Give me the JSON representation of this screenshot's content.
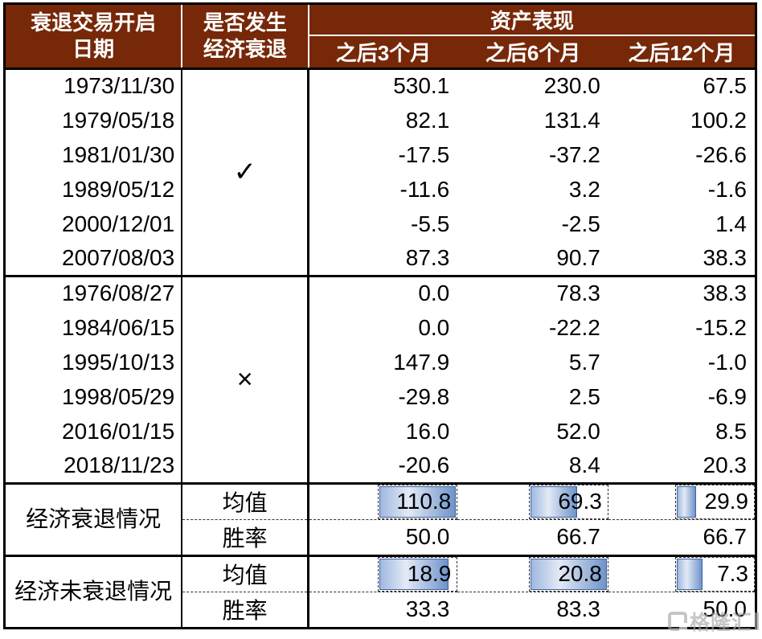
{
  "header": {
    "col1_line1": "衰退交易开启",
    "col1_line2": "日期",
    "col2_line1": "是否发生",
    "col2_line2": "经济衰退",
    "asset_title": "资产表现",
    "sub_3m": "之后3个月",
    "sub_6m": "之后6个月",
    "sub_12m": "之后12个月"
  },
  "groups": [
    {
      "flag": "✓",
      "rows": [
        [
          "1973/11/30",
          "530.1",
          "230.0",
          "67.5"
        ],
        [
          "1979/05/18",
          "82.1",
          "131.4",
          "100.2"
        ],
        [
          "1981/01/30",
          "-17.5",
          "-37.2",
          "-26.6"
        ],
        [
          "1989/05/12",
          "-11.6",
          "3.2",
          "-1.6"
        ],
        [
          "2000/12/01",
          "-5.5",
          "-2.5",
          "1.4"
        ],
        [
          "2007/08/03",
          "87.3",
          "90.7",
          "38.3"
        ]
      ]
    },
    {
      "flag": "×",
      "rows": [
        [
          "1976/08/27",
          "0.0",
          "78.3",
          "38.3"
        ],
        [
          "1984/06/15",
          "0.0",
          "-22.2",
          "-15.2"
        ],
        [
          "1995/10/13",
          "147.9",
          "5.7",
          "-1.0"
        ],
        [
          "1998/05/29",
          "-29.8",
          "2.5",
          "-6.9"
        ],
        [
          "2016/01/15",
          "16.0",
          "52.0",
          "8.5"
        ],
        [
          "2018/11/23",
          "-20.6",
          "8.4",
          "20.3"
        ]
      ]
    }
  ],
  "summaries": [
    {
      "label": "经济衰退情况",
      "mean_label": "均值",
      "win_label": "胜率",
      "means": [
        {
          "v": "110.8",
          "pct": 100
        },
        {
          "v": "69.3",
          "pct": 62.5
        },
        {
          "v": "29.9",
          "pct": 27
        }
      ],
      "wins": [
        "50.0",
        "66.7",
        "66.7"
      ]
    },
    {
      "label": "经济未衰退情况",
      "mean_label": "均值",
      "win_label": "胜率",
      "means": [
        {
          "v": "18.9",
          "pct": 90.9
        },
        {
          "v": "20.8",
          "pct": 100
        },
        {
          "v": "7.3",
          "pct": 35.1
        }
      ],
      "wins": [
        "33.3",
        "83.3",
        "50.0"
      ]
    }
  ],
  "watermark": {
    "text": "格隆汇"
  },
  "colors": {
    "header_bg": "#762808",
    "header_text": "#ffffff",
    "bar_border": "#3e639e",
    "bar_fill_dark": "#6f93c9",
    "bar_fill_light": "#e3eaf6",
    "dashed_border": "#333333"
  },
  "chart_data": {
    "type": "table",
    "title": "衰退交易开启后资产表现",
    "header_group": "资产表现",
    "columns": [
      "衰退交易开启日期",
      "是否发生经济衰退",
      "之后3个月",
      "之后6个月",
      "之后12个月"
    ],
    "rows": [
      [
        "1973/11/30",
        "✓",
        530.1,
        230.0,
        67.5
      ],
      [
        "1979/05/18",
        "✓",
        82.1,
        131.4,
        100.2
      ],
      [
        "1981/01/30",
        "✓",
        -17.5,
        -37.2,
        -26.6
      ],
      [
        "1989/05/12",
        "✓",
        -11.6,
        3.2,
        -1.6
      ],
      [
        "2000/12/01",
        "✓",
        -5.5,
        -2.5,
        1.4
      ],
      [
        "2007/08/03",
        "✓",
        87.3,
        90.7,
        38.3
      ],
      [
        "1976/08/27",
        "×",
        0.0,
        78.3,
        38.3
      ],
      [
        "1984/06/15",
        "×",
        0.0,
        -22.2,
        -15.2
      ],
      [
        "1995/10/13",
        "×",
        147.9,
        5.7,
        -1.0
      ],
      [
        "1998/05/29",
        "×",
        -29.8,
        2.5,
        -6.9
      ],
      [
        "2016/01/15",
        "×",
        16.0,
        52.0,
        8.5
      ],
      [
        "2018/11/23",
        "×",
        -20.6,
        8.4,
        20.3
      ],
      [
        "经济衰退情况",
        "均值",
        110.8,
        69.3,
        29.9
      ],
      [
        "经济衰退情况",
        "胜率",
        50.0,
        66.7,
        66.7
      ],
      [
        "经济未衰退情况",
        "均值",
        18.9,
        20.8,
        7.3
      ],
      [
        "经济未衰退情况",
        "胜率",
        33.3,
        83.3,
        50.0
      ]
    ]
  }
}
